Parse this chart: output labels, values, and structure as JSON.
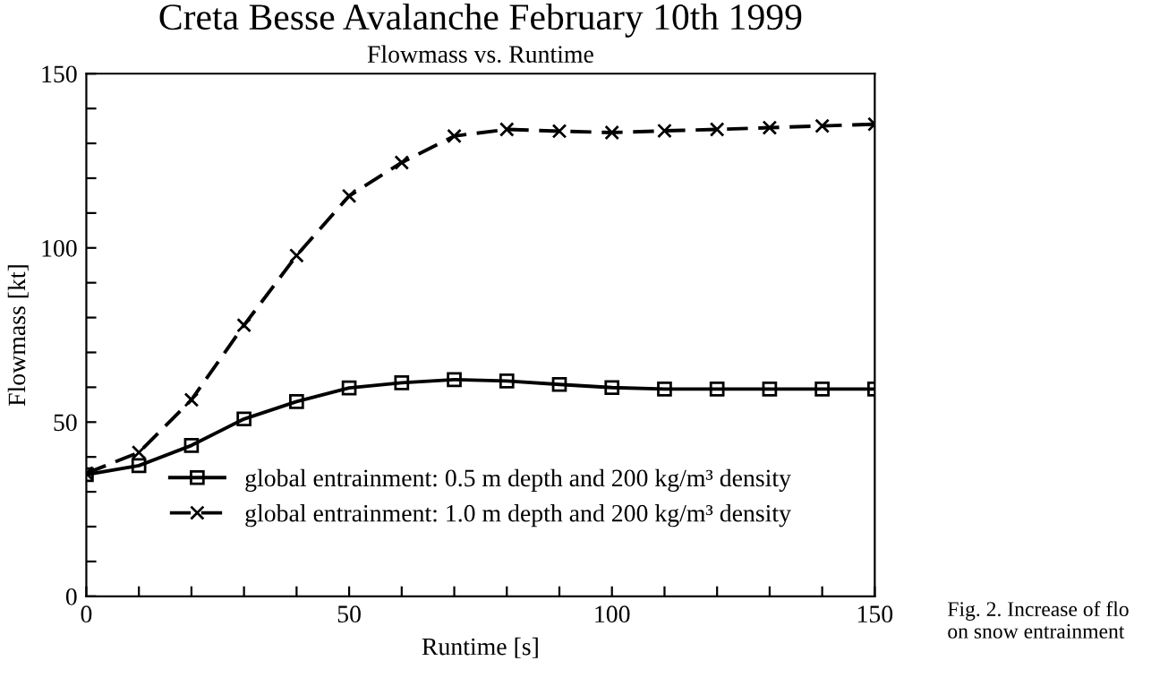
{
  "chart_data": {
    "type": "line",
    "title": "Creta Besse Avalanche February 10th 1999",
    "subtitle": "Flowmass vs. Runtime",
    "xlabel": "Runtime [s]",
    "ylabel": "Flowmass [kt]",
    "annotations": [
      "Fig. 2. Increase of flo\non snow entrainment"
    ],
    "x": [
      0,
      10,
      20,
      30,
      40,
      50,
      60,
      70,
      80,
      90,
      100,
      110,
      120,
      130,
      140,
      150
    ],
    "series": [
      {
        "name": "global entrainment: 0.5 m depth and 200 kg/m³ density",
        "color": "#000000",
        "marker": "square",
        "line_style": "solid",
        "values": [
          34.9,
          37.5,
          43.3,
          50.9,
          55.9,
          59.8,
          61.3,
          62.2,
          61.8,
          60.8,
          59.9,
          59.5,
          59.5,
          59.5,
          59.5,
          59.5
        ]
      },
      {
        "name": "global entrainment: 1.0 m depth and 200 kg/m³ density",
        "color": "#000000",
        "marker": "cross",
        "line_style": "dashed",
        "values": [
          35.3,
          41.3,
          56.4,
          77.8,
          97.8,
          114.9,
          124.5,
          132.1,
          134.0,
          133.5,
          133.1,
          133.6,
          134.0,
          134.5,
          135.0,
          135.5
        ]
      }
    ],
    "xlim": [
      0,
      150
    ],
    "ylim": [
      0,
      150
    ],
    "xticks": [
      0,
      {
        "value": 10,
        "label": null
      },
      {
        "value": 20,
        "label": null
      },
      {
        "value": 30,
        "label": null
      },
      {
        "value": 40,
        "label": null
      },
      50,
      {
        "value": 60,
        "label": null
      },
      {
        "value": 70,
        "label": null
      },
      {
        "value": 80,
        "label": null
      },
      {
        "value": 90,
        "label": null
      },
      100,
      {
        "value": 110,
        "label": null
      },
      {
        "value": 120,
        "label": null
      },
      {
        "value": 130,
        "label": null
      },
      {
        "value": 140,
        "label": null
      },
      150
    ],
    "yticks": [
      0,
      {
        "value": 10,
        "label": null
      },
      {
        "value": 20,
        "label": null
      },
      {
        "value": 30,
        "label": null
      },
      {
        "value": 40,
        "label": null
      },
      50,
      {
        "value": 60,
        "label": null
      },
      {
        "value": 70,
        "label": null
      },
      {
        "value": 80,
        "label": null
      },
      {
        "value": 90,
        "label": null
      },
      100,
      {
        "value": 110,
        "label": null
      },
      {
        "value": 120,
        "label": null
      },
      {
        "value": 130,
        "label": null
      },
      {
        "value": 140,
        "label": null
      },
      150
    ],
    "grid": false,
    "legend": "bottom"
  }
}
